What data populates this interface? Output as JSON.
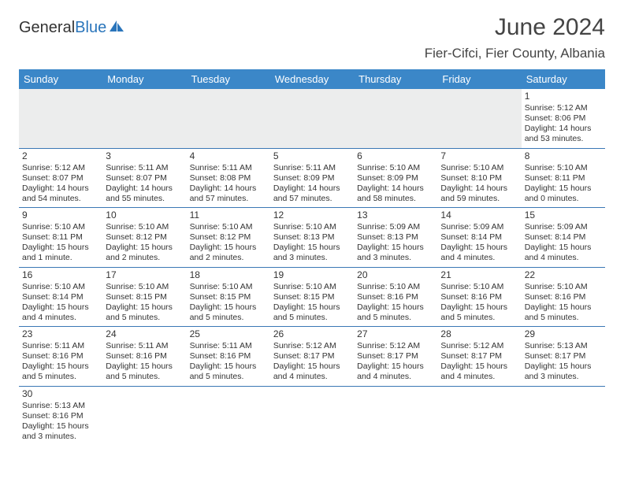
{
  "logo": {
    "part1": "General",
    "part2": "Blue"
  },
  "title": "June 2024",
  "location": "Fier-Cifci, Fier County, Albania",
  "colors": {
    "header_bg": "#3b87c8",
    "header_text": "#ffffff",
    "border": "#3b78b5",
    "blank_bg": "#eceded",
    "text": "#333333",
    "logo_accent": "#2a75bb"
  },
  "day_headers": [
    "Sunday",
    "Monday",
    "Tuesday",
    "Wednesday",
    "Thursday",
    "Friday",
    "Saturday"
  ],
  "leading_blanks": 6,
  "days": [
    {
      "n": "1",
      "sunrise": "5:12 AM",
      "sunset": "8:06 PM",
      "daylight": "14 hours and 53 minutes."
    },
    {
      "n": "2",
      "sunrise": "5:12 AM",
      "sunset": "8:07 PM",
      "daylight": "14 hours and 54 minutes."
    },
    {
      "n": "3",
      "sunrise": "5:11 AM",
      "sunset": "8:07 PM",
      "daylight": "14 hours and 55 minutes."
    },
    {
      "n": "4",
      "sunrise": "5:11 AM",
      "sunset": "8:08 PM",
      "daylight": "14 hours and 57 minutes."
    },
    {
      "n": "5",
      "sunrise": "5:11 AM",
      "sunset": "8:09 PM",
      "daylight": "14 hours and 57 minutes."
    },
    {
      "n": "6",
      "sunrise": "5:10 AM",
      "sunset": "8:09 PM",
      "daylight": "14 hours and 58 minutes."
    },
    {
      "n": "7",
      "sunrise": "5:10 AM",
      "sunset": "8:10 PM",
      "daylight": "14 hours and 59 minutes."
    },
    {
      "n": "8",
      "sunrise": "5:10 AM",
      "sunset": "8:11 PM",
      "daylight": "15 hours and 0 minutes."
    },
    {
      "n": "9",
      "sunrise": "5:10 AM",
      "sunset": "8:11 PM",
      "daylight": "15 hours and 1 minute."
    },
    {
      "n": "10",
      "sunrise": "5:10 AM",
      "sunset": "8:12 PM",
      "daylight": "15 hours and 2 minutes."
    },
    {
      "n": "11",
      "sunrise": "5:10 AM",
      "sunset": "8:12 PM",
      "daylight": "15 hours and 2 minutes."
    },
    {
      "n": "12",
      "sunrise": "5:10 AM",
      "sunset": "8:13 PM",
      "daylight": "15 hours and 3 minutes."
    },
    {
      "n": "13",
      "sunrise": "5:09 AM",
      "sunset": "8:13 PM",
      "daylight": "15 hours and 3 minutes."
    },
    {
      "n": "14",
      "sunrise": "5:09 AM",
      "sunset": "8:14 PM",
      "daylight": "15 hours and 4 minutes."
    },
    {
      "n": "15",
      "sunrise": "5:09 AM",
      "sunset": "8:14 PM",
      "daylight": "15 hours and 4 minutes."
    },
    {
      "n": "16",
      "sunrise": "5:10 AM",
      "sunset": "8:14 PM",
      "daylight": "15 hours and 4 minutes."
    },
    {
      "n": "17",
      "sunrise": "5:10 AM",
      "sunset": "8:15 PM",
      "daylight": "15 hours and 5 minutes."
    },
    {
      "n": "18",
      "sunrise": "5:10 AM",
      "sunset": "8:15 PM",
      "daylight": "15 hours and 5 minutes."
    },
    {
      "n": "19",
      "sunrise": "5:10 AM",
      "sunset": "8:15 PM",
      "daylight": "15 hours and 5 minutes."
    },
    {
      "n": "20",
      "sunrise": "5:10 AM",
      "sunset": "8:16 PM",
      "daylight": "15 hours and 5 minutes."
    },
    {
      "n": "21",
      "sunrise": "5:10 AM",
      "sunset": "8:16 PM",
      "daylight": "15 hours and 5 minutes."
    },
    {
      "n": "22",
      "sunrise": "5:10 AM",
      "sunset": "8:16 PM",
      "daylight": "15 hours and 5 minutes."
    },
    {
      "n": "23",
      "sunrise": "5:11 AM",
      "sunset": "8:16 PM",
      "daylight": "15 hours and 5 minutes."
    },
    {
      "n": "24",
      "sunrise": "5:11 AM",
      "sunset": "8:16 PM",
      "daylight": "15 hours and 5 minutes."
    },
    {
      "n": "25",
      "sunrise": "5:11 AM",
      "sunset": "8:16 PM",
      "daylight": "15 hours and 5 minutes."
    },
    {
      "n": "26",
      "sunrise": "5:12 AM",
      "sunset": "8:17 PM",
      "daylight": "15 hours and 4 minutes."
    },
    {
      "n": "27",
      "sunrise": "5:12 AM",
      "sunset": "8:17 PM",
      "daylight": "15 hours and 4 minutes."
    },
    {
      "n": "28",
      "sunrise": "5:12 AM",
      "sunset": "8:17 PM",
      "daylight": "15 hours and 4 minutes."
    },
    {
      "n": "29",
      "sunrise": "5:13 AM",
      "sunset": "8:17 PM",
      "daylight": "15 hours and 3 minutes."
    },
    {
      "n": "30",
      "sunrise": "5:13 AM",
      "sunset": "8:16 PM",
      "daylight": "15 hours and 3 minutes."
    }
  ],
  "labels": {
    "sunrise": "Sunrise: ",
    "sunset": "Sunset: ",
    "daylight": "Daylight: "
  }
}
